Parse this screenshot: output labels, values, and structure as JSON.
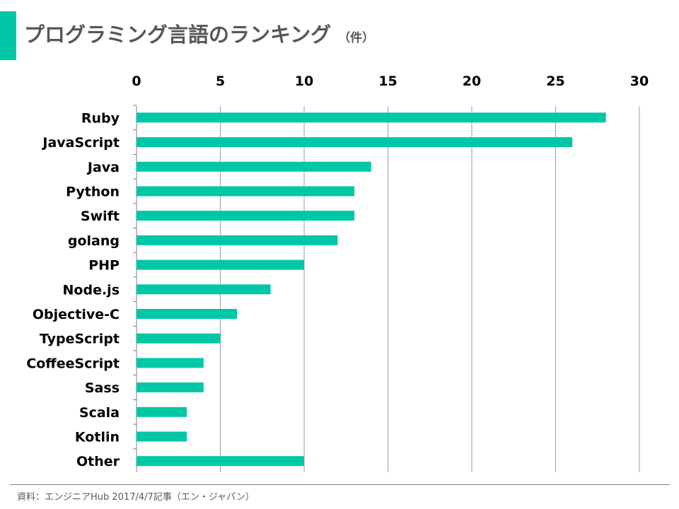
{
  "header": {
    "title": "プログラミング言語のランキング",
    "unit": "（件）"
  },
  "footer": {
    "source": "資料：エンジニアHub 2017/4/7記事（エン・ジャパン）"
  },
  "colors": {
    "accent": "#00c7a6",
    "bar": "#00c7a6",
    "grid": "#9e9e9e"
  },
  "chart_data": {
    "type": "bar",
    "orientation": "horizontal",
    "title": "プログラミング言語のランキング",
    "unit": "件",
    "categories": [
      "Ruby",
      "JavaScript",
      "Java",
      "Python",
      "Swift",
      "golang",
      "PHP",
      "Node.js",
      "Objective-C",
      "TypeScript",
      "CoffeeScript",
      "Sass",
      "Scala",
      "Kotlin",
      "Other"
    ],
    "values": [
      28,
      26,
      14,
      13,
      13,
      12,
      10,
      8,
      6,
      5,
      4,
      4,
      3,
      3,
      10
    ],
    "xlim": [
      0,
      30
    ],
    "xticks": [
      0,
      5,
      10,
      15,
      20,
      25,
      30
    ],
    "x_axis_position": "top",
    "grid": true,
    "legend": "none"
  }
}
